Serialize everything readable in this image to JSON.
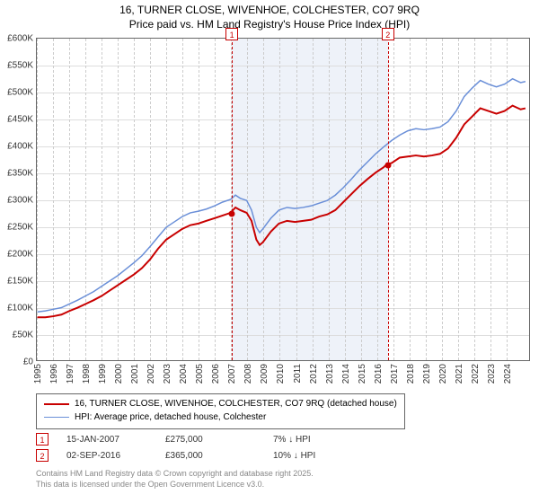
{
  "title": {
    "line1": "16, TURNER CLOSE, WIVENHOE, COLCHESTER, CO7 9RQ",
    "line2": "Price paid vs. HM Land Registry's House Price Index (HPI)",
    "fontsize": 12,
    "color": "#000000"
  },
  "chart": {
    "type": "line",
    "background_color": "#ffffff",
    "plot_border_color": "#666666",
    "grid_color_v": "#cccccc",
    "grid_dash_v": "4,3",
    "grid_color_h": "#dddddd",
    "highlight_band": {
      "from_year": 2007.04,
      "to_year": 2016.67,
      "color": "#eef2f9"
    },
    "xlim": [
      1995,
      2025.5
    ],
    "ylim": [
      0,
      600000
    ],
    "xticks": [
      1995,
      1996,
      1997,
      1998,
      1999,
      2000,
      2001,
      2002,
      2003,
      2004,
      2005,
      2006,
      2007,
      2008,
      2009,
      2010,
      2011,
      2012,
      2013,
      2014,
      2015,
      2016,
      2017,
      2018,
      2019,
      2020,
      2021,
      2022,
      2023,
      2024
    ],
    "yticks": [
      {
        "v": 0,
        "label": "£0"
      },
      {
        "v": 50000,
        "label": "£50K"
      },
      {
        "v": 100000,
        "label": "£100K"
      },
      {
        "v": 150000,
        "label": "£150K"
      },
      {
        "v": 200000,
        "label": "£200K"
      },
      {
        "v": 250000,
        "label": "£250K"
      },
      {
        "v": 300000,
        "label": "£300K"
      },
      {
        "v": 350000,
        "label": "£350K"
      },
      {
        "v": 400000,
        "label": "£400K"
      },
      {
        "v": 450000,
        "label": "£450K"
      },
      {
        "v": 500000,
        "label": "£500K"
      },
      {
        "v": 550000,
        "label": "£550K"
      },
      {
        "v": 600000,
        "label": "£600K"
      }
    ],
    "tick_fontsize": 10,
    "series": [
      {
        "key": "price_paid",
        "label": "16, TURNER CLOSE, WIVENHOE, COLCHESTER, CO7 9RQ (detached house)",
        "color": "#c80000",
        "line_width": 2,
        "points": [
          [
            1995,
            80000
          ],
          [
            1995.5,
            80000
          ],
          [
            1996,
            82000
          ],
          [
            1996.5,
            85000
          ],
          [
            1997,
            92000
          ],
          [
            1997.5,
            98000
          ],
          [
            1998,
            105000
          ],
          [
            1998.5,
            112000
          ],
          [
            1999,
            120000
          ],
          [
            1999.5,
            130000
          ],
          [
            2000,
            140000
          ],
          [
            2000.5,
            150000
          ],
          [
            2001,
            160000
          ],
          [
            2001.5,
            172000
          ],
          [
            2002,
            188000
          ],
          [
            2002.5,
            208000
          ],
          [
            2003,
            225000
          ],
          [
            2003.5,
            235000
          ],
          [
            2004,
            245000
          ],
          [
            2004.5,
            252000
          ],
          [
            2005,
            255000
          ],
          [
            2005.5,
            260000
          ],
          [
            2006,
            265000
          ],
          [
            2006.5,
            270000
          ],
          [
            2007,
            275000
          ],
          [
            2007.3,
            285000
          ],
          [
            2007.6,
            280000
          ],
          [
            2008,
            275000
          ],
          [
            2008.3,
            260000
          ],
          [
            2008.6,
            225000
          ],
          [
            2008.8,
            215000
          ],
          [
            2009,
            220000
          ],
          [
            2009.5,
            240000
          ],
          [
            2010,
            255000
          ],
          [
            2010.5,
            260000
          ],
          [
            2011,
            258000
          ],
          [
            2011.5,
            260000
          ],
          [
            2012,
            262000
          ],
          [
            2012.5,
            268000
          ],
          [
            2013,
            272000
          ],
          [
            2013.5,
            280000
          ],
          [
            2014,
            295000
          ],
          [
            2014.5,
            310000
          ],
          [
            2015,
            325000
          ],
          [
            2015.5,
            338000
          ],
          [
            2016,
            350000
          ],
          [
            2016.5,
            360000
          ],
          [
            2016.67,
            365000
          ],
          [
            2017,
            368000
          ],
          [
            2017.5,
            378000
          ],
          [
            2018,
            380000
          ],
          [
            2018.5,
            382000
          ],
          [
            2019,
            380000
          ],
          [
            2019.5,
            382000
          ],
          [
            2020,
            385000
          ],
          [
            2020.5,
            395000
          ],
          [
            2021,
            415000
          ],
          [
            2021.5,
            440000
          ],
          [
            2022,
            455000
          ],
          [
            2022.5,
            470000
          ],
          [
            2023,
            465000
          ],
          [
            2023.5,
            460000
          ],
          [
            2024,
            465000
          ],
          [
            2024.5,
            475000
          ],
          [
            2025,
            468000
          ],
          [
            2025.3,
            470000
          ]
        ]
      },
      {
        "key": "hpi",
        "label": "HPI: Average price, detached house, Colchester",
        "color": "#6a8fd8",
        "line_width": 1.5,
        "points": [
          [
            1995,
            90000
          ],
          [
            1995.5,
            92000
          ],
          [
            1996,
            95000
          ],
          [
            1996.5,
            98000
          ],
          [
            1997,
            105000
          ],
          [
            1997.5,
            112000
          ],
          [
            1998,
            120000
          ],
          [
            1998.5,
            128000
          ],
          [
            1999,
            138000
          ],
          [
            1999.5,
            148000
          ],
          [
            2000,
            158000
          ],
          [
            2000.5,
            170000
          ],
          [
            2001,
            182000
          ],
          [
            2001.5,
            195000
          ],
          [
            2002,
            212000
          ],
          [
            2002.5,
            230000
          ],
          [
            2003,
            248000
          ],
          [
            2003.5,
            258000
          ],
          [
            2004,
            268000
          ],
          [
            2004.5,
            275000
          ],
          [
            2005,
            278000
          ],
          [
            2005.5,
            282000
          ],
          [
            2006,
            288000
          ],
          [
            2006.5,
            295000
          ],
          [
            2007,
            300000
          ],
          [
            2007.3,
            308000
          ],
          [
            2007.6,
            302000
          ],
          [
            2008,
            298000
          ],
          [
            2008.3,
            280000
          ],
          [
            2008.6,
            248000
          ],
          [
            2008.8,
            238000
          ],
          [
            2009,
            245000
          ],
          [
            2009.5,
            265000
          ],
          [
            2010,
            280000
          ],
          [
            2010.5,
            285000
          ],
          [
            2011,
            283000
          ],
          [
            2011.5,
            285000
          ],
          [
            2012,
            288000
          ],
          [
            2012.5,
            293000
          ],
          [
            2013,
            298000
          ],
          [
            2013.5,
            308000
          ],
          [
            2014,
            322000
          ],
          [
            2014.5,
            338000
          ],
          [
            2015,
            355000
          ],
          [
            2015.5,
            370000
          ],
          [
            2016,
            385000
          ],
          [
            2016.5,
            398000
          ],
          [
            2016.67,
            402000
          ],
          [
            2017,
            410000
          ],
          [
            2017.5,
            420000
          ],
          [
            2018,
            428000
          ],
          [
            2018.5,
            432000
          ],
          [
            2019,
            430000
          ],
          [
            2019.5,
            432000
          ],
          [
            2020,
            435000
          ],
          [
            2020.5,
            445000
          ],
          [
            2021,
            465000
          ],
          [
            2021.5,
            492000
          ],
          [
            2022,
            508000
          ],
          [
            2022.5,
            522000
          ],
          [
            2023,
            515000
          ],
          [
            2023.5,
            510000
          ],
          [
            2024,
            515000
          ],
          [
            2024.5,
            525000
          ],
          [
            2025,
            518000
          ],
          [
            2025.3,
            520000
          ]
        ]
      }
    ],
    "markers": [
      {
        "n": "1",
        "color": "#c80000",
        "x": 2007.04,
        "y": 275000
      },
      {
        "n": "2",
        "color": "#c80000",
        "x": 2016.67,
        "y": 365000
      }
    ],
    "ref_lines": [
      {
        "n": "1",
        "x": 2007.04,
        "color": "#c80000"
      },
      {
        "n": "2",
        "x": 2016.67,
        "color": "#c80000"
      }
    ]
  },
  "legend": {
    "border_color": "#666666",
    "fontsize": 10
  },
  "sales": [
    {
      "n": "1",
      "color": "#c80000",
      "date": "15-JAN-2007",
      "price": "£275,000",
      "pct": "7%",
      "arrow": "↓",
      "vs": "HPI"
    },
    {
      "n": "2",
      "color": "#c80000",
      "date": "02-SEP-2016",
      "price": "£365,000",
      "pct": "10%",
      "arrow": "↓",
      "vs": "HPI"
    }
  ],
  "footer": {
    "line1": "Contains HM Land Registry data © Crown copyright and database right 2025.",
    "line2": "This data is licensed under the Open Government Licence v3.0.",
    "color": "#888888",
    "fontsize": 9
  }
}
